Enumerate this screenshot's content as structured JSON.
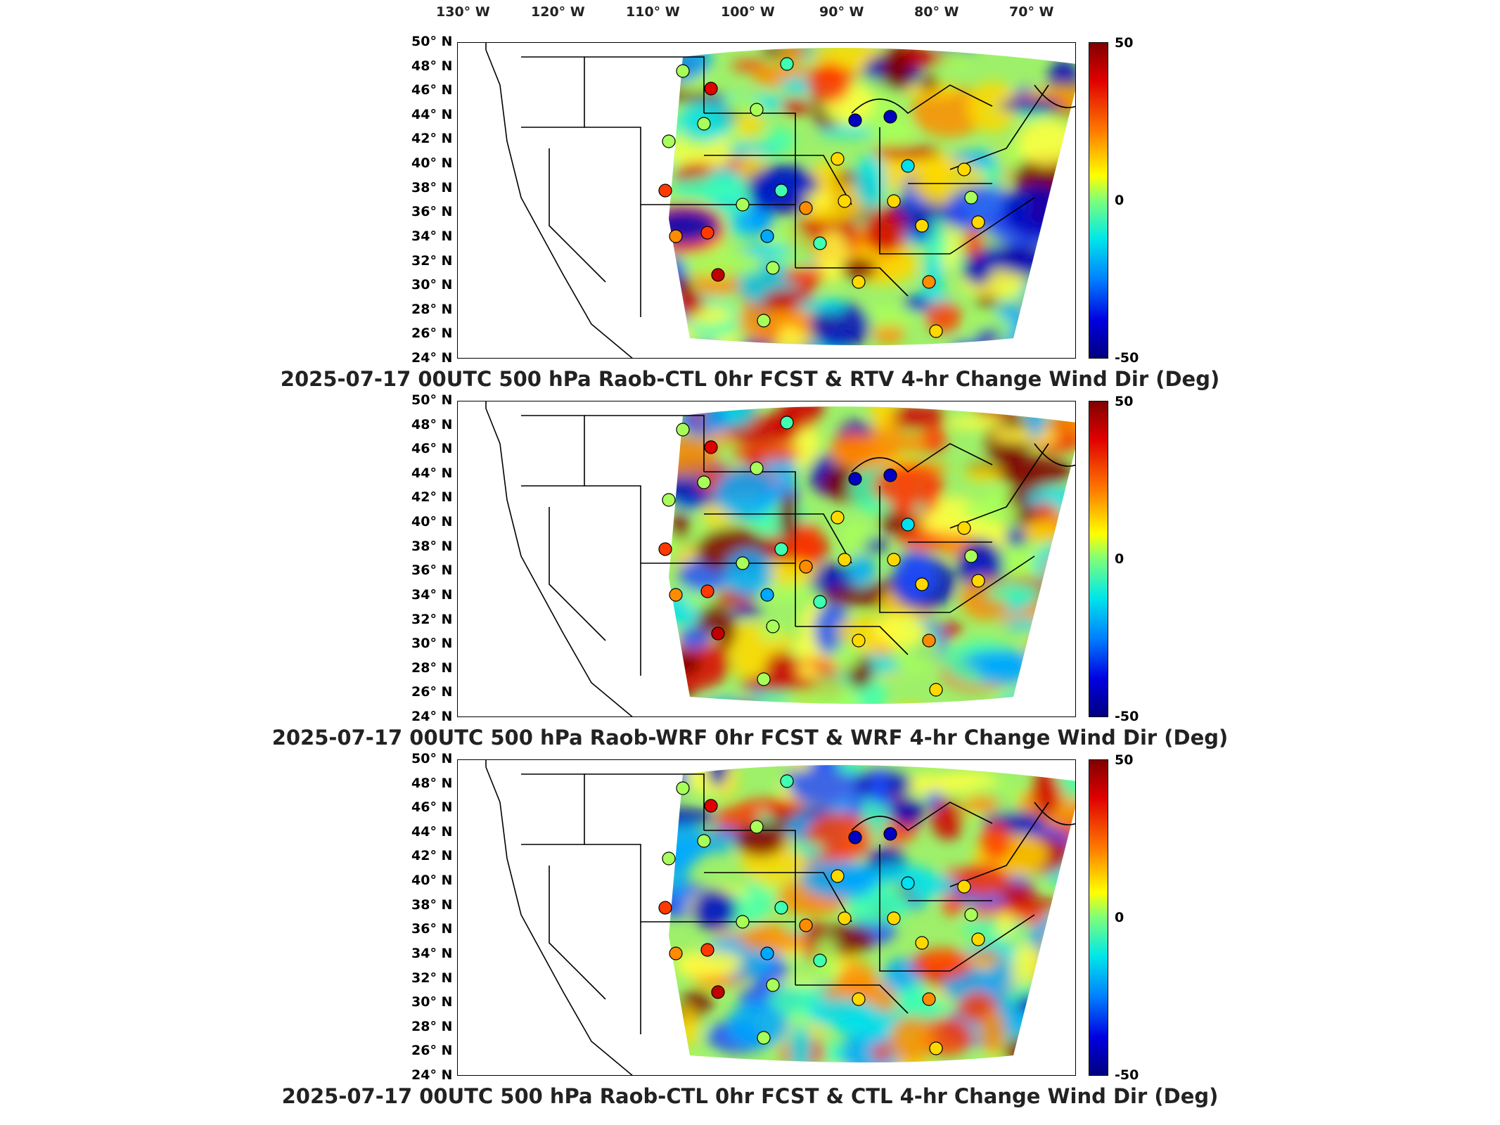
{
  "lon_labels": [
    "130° W",
    "120° W",
    "110° W",
    "100° W",
    "90° W",
    "80° W",
    "70° W"
  ],
  "lat_labels": [
    "50° N",
    "48° N",
    "46° N",
    "44° N",
    "42° N",
    "40° N",
    "38° N",
    "36° N",
    "34° N",
    "32° N",
    "30° N",
    "28° N",
    "26° N",
    "24° N"
  ],
  "colorbar": {
    "max": "50",
    "mid": "0",
    "min": "-50"
  },
  "panels": [
    {
      "title": "2025-07-17 00UTC 500 hPa Raob-CTL 0hr FCST & RTV 4-hr Change Wind Dir (Deg)"
    },
    {
      "title": "2025-07-17 00UTC 500 hPa Raob-WRF 0hr FCST & WRF 4-hr Change Wind Dir (Deg)"
    },
    {
      "title": "2025-07-17 00UTC 500 hPa Raob-CTL 0hr FCST & CTL 4-hr Change Wind Dir (Deg)"
    }
  ]
}
